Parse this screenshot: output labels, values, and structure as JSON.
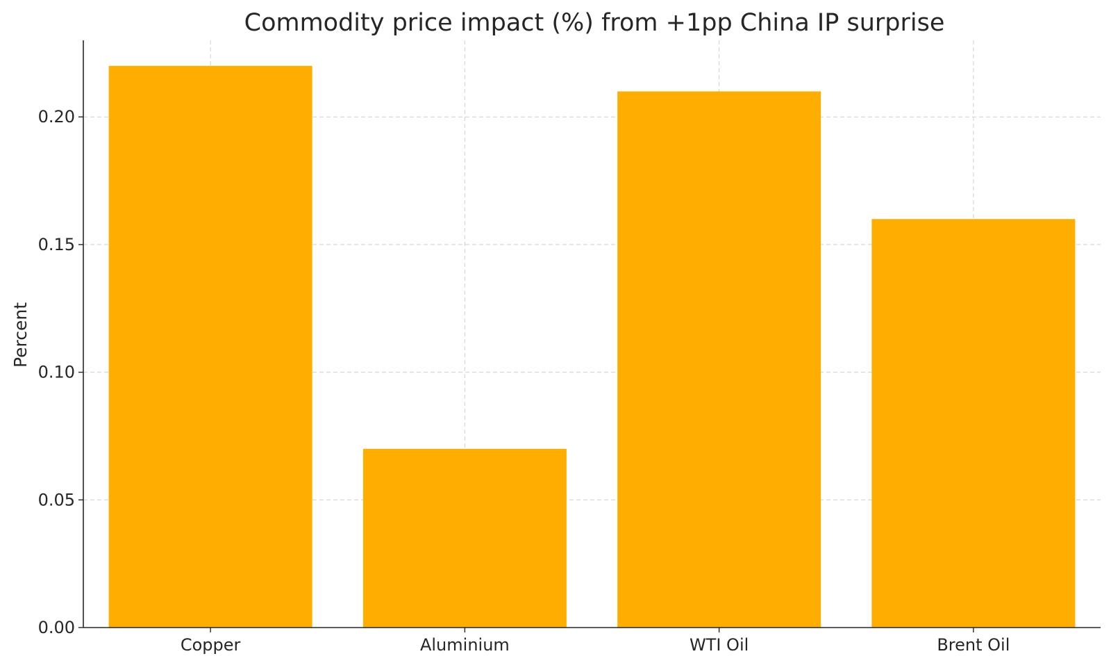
{
  "chart_data": {
    "type": "bar",
    "title": "Commodity price impact (%) from +1pp China IP surprise",
    "xlabel": "",
    "ylabel": "Percent",
    "categories": [
      "Copper",
      "Aluminium",
      "WTI Oil",
      "Brent Oil"
    ],
    "values": [
      0.22,
      0.07,
      0.21,
      0.16
    ],
    "ylim": [
      0,
      0.23
    ],
    "yticks": [
      0.0,
      0.05,
      0.1,
      0.15,
      0.2
    ],
    "ytick_labels": [
      "0.00",
      "0.05",
      "0.10",
      "0.15",
      "0.20"
    ],
    "grid": true,
    "legend": "none",
    "bar_color": "#ffae00"
  }
}
